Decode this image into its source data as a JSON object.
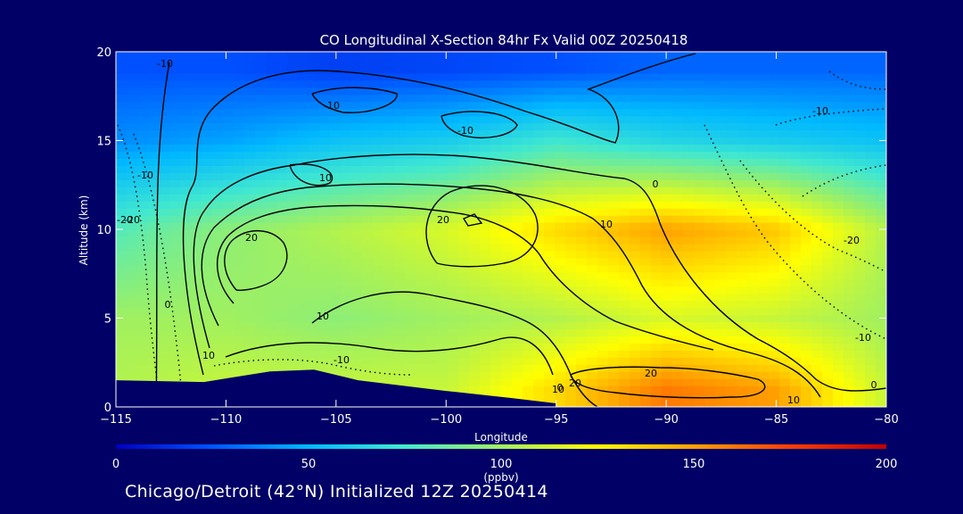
{
  "chart_data": {
    "type": "heatmap",
    "title": "CO Longitudinal X-Section 84hr  Fx Valid 00Z 20250418",
    "xlabel": "Longitude",
    "ylabel": "Altitude (km)",
    "xlim": [
      -115,
      -80
    ],
    "ylim": [
      0,
      20
    ],
    "x_ticks": [
      -115,
      -110,
      -105,
      -100,
      -95,
      -90,
      -85,
      -80
    ],
    "x_tick_labels": [
      "−115",
      "−110",
      "−105",
      "−100",
      "−95",
      "−90",
      "−85",
      "−80"
    ],
    "y_ticks": [
      0,
      5,
      10,
      15,
      20
    ],
    "y_tick_labels": [
      "0",
      "5",
      "10",
      "15",
      "20"
    ],
    "colorbar": {
      "label": "(ppbv)",
      "range": [
        0,
        200
      ],
      "ticks": [
        0,
        50,
        100,
        150,
        200
      ],
      "tick_labels": [
        "0",
        "50",
        "100",
        "150",
        "200"
      ],
      "colors": [
        "#0000c0",
        "#0050ff",
        "#00b8ff",
        "#40e8d0",
        "#a0f060",
        "#ffff00",
        "#ffa000",
        "#ff4000",
        "#c00000"
      ]
    },
    "co_field_ppbv": {
      "x": [
        -115,
        -110,
        -105,
        -100,
        -95,
        -90,
        -85,
        -80
      ],
      "z": [
        1,
        5,
        10,
        15,
        19
      ],
      "values": [
        [
          105,
          110,
          110,
          110,
          135,
          160,
          150,
          110
        ],
        [
          100,
          100,
          95,
          100,
          105,
          115,
          110,
          100
        ],
        [
          80,
          95,
          105,
          115,
          135,
          150,
          140,
          105
        ],
        [
          40,
          45,
          55,
          60,
          75,
          65,
          60,
          55
        ],
        [
          25,
          25,
          20,
          22,
          25,
          30,
          30,
          30
        ]
      ]
    },
    "terrain_km": {
      "x": [
        -115,
        -111,
        -108,
        -106,
        -104,
        -100,
        -97,
        -95
      ],
      "values": [
        1.5,
        1.4,
        2.0,
        2.1,
        1.5,
        0.9,
        0.5,
        0.2
      ]
    },
    "contour_labels": [
      "-10",
      "-10",
      "10",
      "-10",
      "20",
      "-10",
      "20",
      "0",
      "-20",
      "10",
      "10",
      "0",
      "-20",
      "0",
      "-10",
      "10",
      "20",
      "-10",
      "10",
      "20",
      "10",
      "0",
      "-10",
      "-20"
    ]
  },
  "footer": "Chicago/Detroit (42°N) Initialized 12Z 20250414"
}
